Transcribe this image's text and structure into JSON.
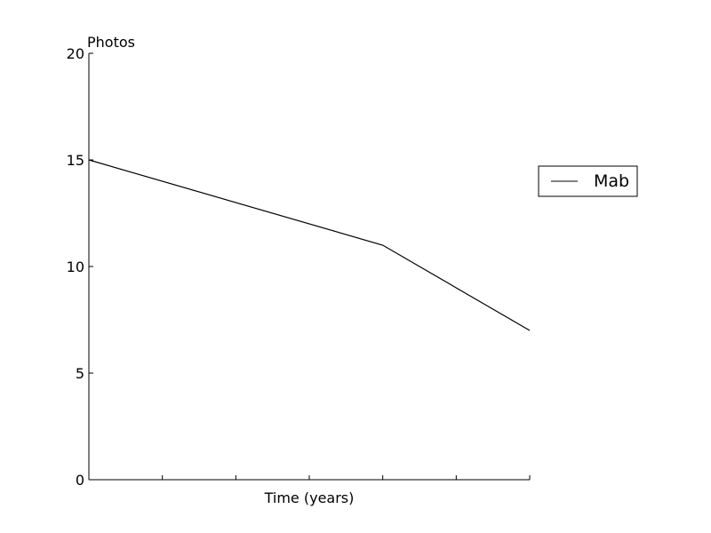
{
  "chart_data": {
    "type": "line",
    "title": "",
    "xlabel": "Time (years)",
    "ylabel": "Photos",
    "x": [
      0,
      1,
      2,
      3,
      4,
      5,
      6
    ],
    "xlim": [
      0,
      6
    ],
    "xticks": [
      0,
      1,
      2,
      3,
      4,
      5,
      6
    ],
    "ylim": [
      0,
      20
    ],
    "yticks": [
      0,
      5,
      10,
      15,
      20
    ],
    "ytick_labels": [
      "0",
      "5",
      "10",
      "15",
      "20"
    ],
    "series": [
      {
        "name": "Mab",
        "x": [
          0,
          4,
          6
        ],
        "values": [
          15,
          11,
          7
        ],
        "color": "#000000"
      }
    ],
    "legend": {
      "position": "right",
      "entries": [
        "Mab"
      ]
    },
    "grid": false
  }
}
